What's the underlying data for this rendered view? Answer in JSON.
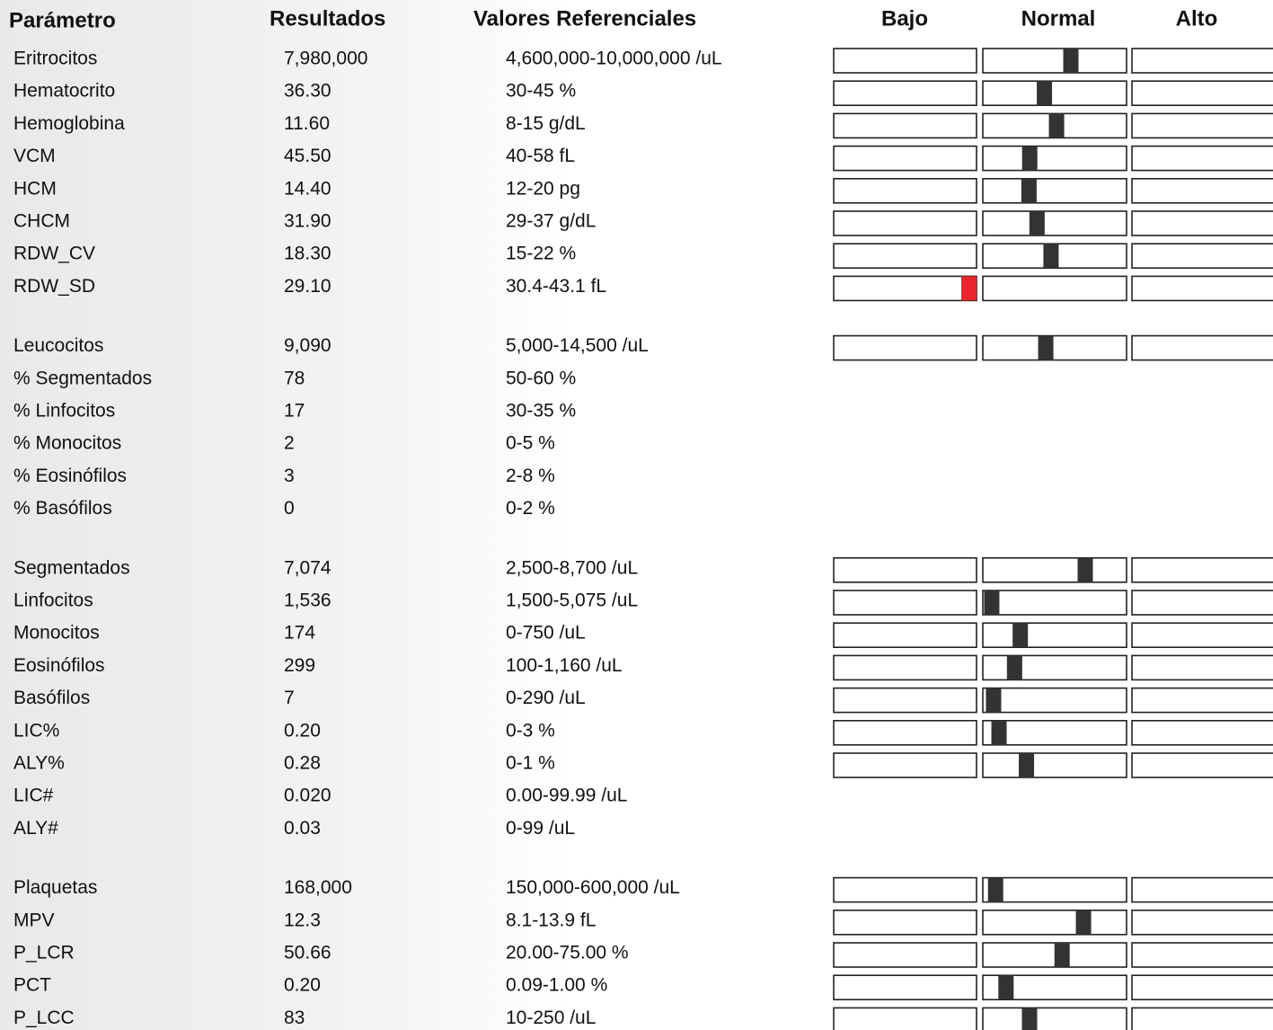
{
  "header": {
    "parameter": "Parámetro",
    "results": "Resultados",
    "reference": "Valores Referenciales",
    "low": "Bajo",
    "normal": "Normal",
    "high": "Alto"
  },
  "groups": [
    {
      "rows": [
        {
          "param": "Eritrocitos",
          "result": "7,980,000",
          "reference": "4,600,000-10,000,000 /uL",
          "bar": true
        },
        {
          "param": "Hematocrito",
          "result": "36.30",
          "reference": "30-45 %",
          "bar": true
        },
        {
          "param": "Hemoglobina",
          "result": "11.60",
          "reference": "8-15 g/dL",
          "bar": true
        },
        {
          "param": "VCM",
          "result": "45.50",
          "reference": "40-58 fL",
          "bar": true
        },
        {
          "param": "HCM",
          "result": "14.40",
          "reference": "12-20 pg",
          "bar": true
        },
        {
          "param": "CHCM",
          "result": "31.90",
          "reference": "29-37 g/dL",
          "bar": true
        },
        {
          "param": "RDW_CV",
          "result": "18.30",
          "reference": "15-22 %",
          "bar": true
        },
        {
          "param": "RDW_SD",
          "result": "29.10",
          "reference": "30.4-43.1 fL",
          "bar": true
        }
      ]
    },
    {
      "rows": [
        {
          "param": "Leucocitos",
          "result": "9,090",
          "reference": "5,000-14,500 /uL",
          "bar": true
        },
        {
          "param": "% Segmentados",
          "result": "78",
          "reference": "50-60 %",
          "bar": false
        },
        {
          "param": "% Linfocitos",
          "result": "17",
          "reference": "30-35 %",
          "bar": false
        },
        {
          "param": "% Monocitos",
          "result": "2",
          "reference": "0-5 %",
          "bar": false
        },
        {
          "param": "% Eosinófilos",
          "result": "3",
          "reference": "2-8 %",
          "bar": false
        },
        {
          "param": "% Basófilos",
          "result": "0",
          "reference": "0-2 %",
          "bar": false
        }
      ]
    },
    {
      "rows": [
        {
          "param": "Segmentados",
          "result": "7,074",
          "reference": "2,500-8,700 /uL",
          "bar": true
        },
        {
          "param": "Linfocitos",
          "result": "1,536",
          "reference": "1,500-5,075 /uL",
          "bar": true
        },
        {
          "param": "Monocitos",
          "result": "174",
          "reference": "0-750 /uL",
          "bar": true
        },
        {
          "param": "Eosinófilos",
          "result": "299",
          "reference": "100-1,160 /uL",
          "bar": true
        },
        {
          "param": "Basófilos",
          "result": "7",
          "reference": "0-290 /uL",
          "bar": true
        },
        {
          "param": "LIC%",
          "result": "0.20",
          "reference": "0-3 %",
          "bar": true
        },
        {
          "param": "ALY%",
          "result": "0.28",
          "reference": "0-1 %",
          "bar": true
        },
        {
          "param": "LIC#",
          "result": "0.020",
          "reference": "0.00-99.99 /uL",
          "bar": false
        },
        {
          "param": "ALY#",
          "result": "0.03",
          "reference": "0-99 /uL",
          "bar": false
        }
      ]
    },
    {
      "rows": [
        {
          "param": "Plaquetas",
          "result": "168,000",
          "reference": "150,000-600,000 /uL",
          "bar": true
        },
        {
          "param": "MPV",
          "result": "12.3",
          "reference": "8.1-13.9 fL",
          "bar": true
        },
        {
          "param": "P_LCR",
          "result": "50.66",
          "reference": "20.00-75.00 %",
          "bar": true
        },
        {
          "param": "PCT",
          "result": "0.20",
          "reference": "0.09-1.00 %",
          "bar": true
        },
        {
          "param": "P_LCC",
          "result": "83",
          "reference": "10-250 /uL",
          "bar": true
        }
      ]
    }
  ]
}
